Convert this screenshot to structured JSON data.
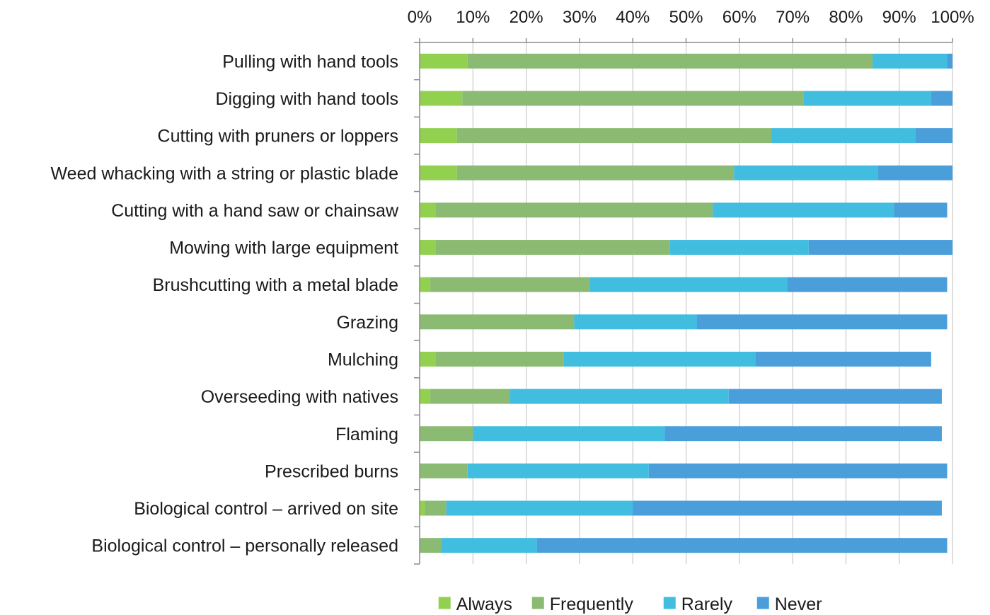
{
  "chart_data": {
    "type": "bar",
    "orientation": "horizontal",
    "stacked": true,
    "title": "",
    "xlabel": "",
    "ylabel": "",
    "xlim": [
      0,
      100
    ],
    "x_ticks": [
      "0%",
      "10%",
      "20%",
      "30%",
      "40%",
      "50%",
      "60%",
      "70%",
      "80%",
      "90%",
      "100%"
    ],
    "x_axis_position": "top",
    "grid": true,
    "legend_position": "bottom",
    "categories": [
      "Pulling with hand tools",
      "Digging with hand tools",
      "Cutting with pruners or loppers",
      "Weed whacking with a string or plastic blade",
      "Cutting with a hand saw or chainsaw ",
      "Mowing with large equipment",
      "Brushcutting  with a metal blade",
      "Grazing",
      "Mulching",
      "Overseeding with natives",
      "Flaming",
      "Prescribed burns",
      "Biological control – arrived on site",
      "Biological control – personally released"
    ],
    "series": [
      {
        "name": "Always",
        "color": "#92D050",
        "values": [
          9,
          8,
          7,
          7,
          3,
          3,
          2,
          0,
          3,
          2,
          0,
          0,
          1,
          0
        ]
      },
      {
        "name": "Frequently",
        "color": "#8BBB72",
        "values": [
          76,
          64,
          59,
          52,
          52,
          44,
          30,
          29,
          24,
          15,
          10,
          9,
          4,
          4
        ]
      },
      {
        "name": "Rarely",
        "color": "#41BDE0",
        "values": [
          14,
          24,
          27,
          27,
          34,
          26,
          37,
          23,
          36,
          41,
          36,
          34,
          35,
          18
        ]
      },
      {
        "name": "Never",
        "color": "#4A9FDB",
        "values": [
          1,
          4,
          7,
          14,
          10,
          27,
          30,
          47,
          33,
          40,
          52,
          56,
          58,
          77
        ]
      }
    ]
  }
}
